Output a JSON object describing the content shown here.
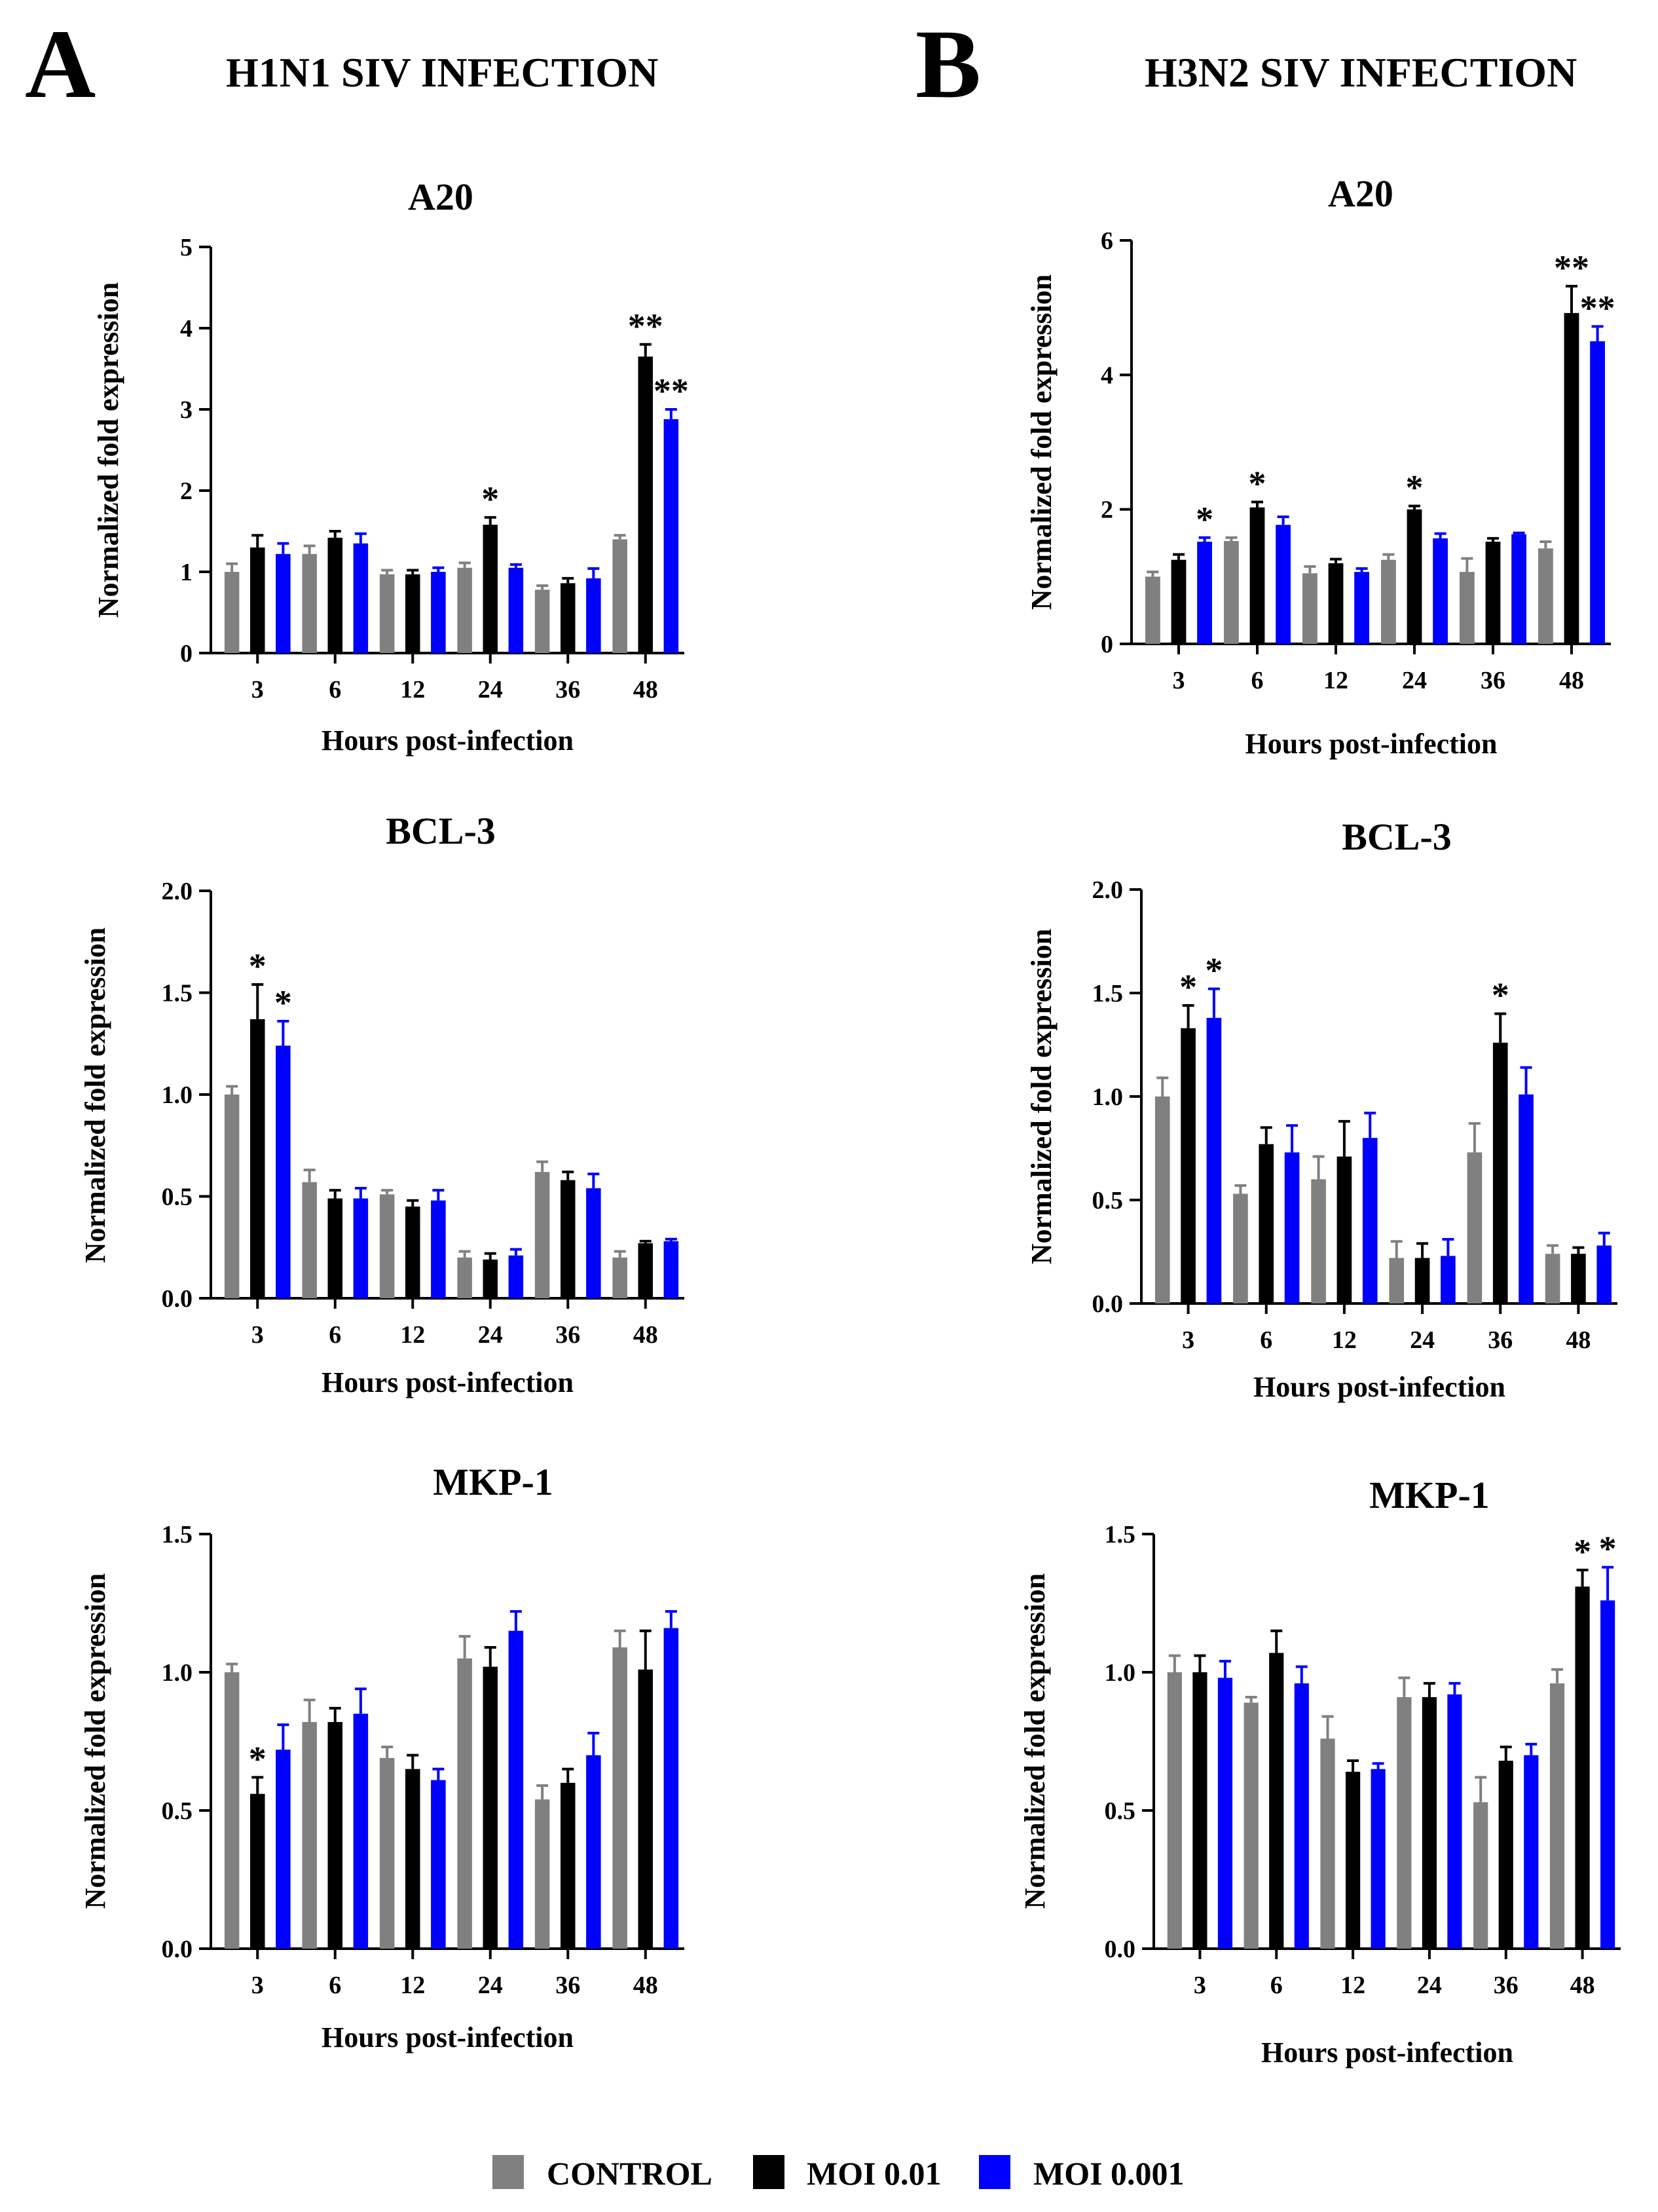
{
  "panels": [
    {
      "letter": "A",
      "title": "H1N1 SIV INFECTION"
    },
    {
      "letter": "B",
      "title": "H3N2 SIV INFECTION"
    }
  ],
  "legend": [
    {
      "label": "CONTROL",
      "color": "#808080"
    },
    {
      "label": "MOI 0.01",
      "color": "#000000"
    },
    {
      "label": "MOI 0.001",
      "color": "#0000ff"
    }
  ],
  "chart_data": [
    {
      "panel": "A",
      "type": "bar",
      "title": "A20",
      "xlabel": "Hours post-infection",
      "ylabel": "Normalized fold expression",
      "categories": [
        "3",
        "6",
        "12",
        "24",
        "36",
        "48"
      ],
      "ylim": [
        0,
        5
      ],
      "yticks": [
        "0",
        "1",
        "2",
        "3",
        "4",
        "5"
      ],
      "series": [
        {
          "name": "CONTROL",
          "values": [
            1.0,
            1.22,
            0.97,
            1.05,
            0.78,
            1.4
          ],
          "errors": [
            0.1,
            0.1,
            0.05,
            0.06,
            0.05,
            0.05
          ]
        },
        {
          "name": "MOI 0.01",
          "values": [
            1.3,
            1.42,
            0.97,
            1.58,
            0.86,
            3.65
          ],
          "errors": [
            0.15,
            0.08,
            0.05,
            0.09,
            0.06,
            0.15
          ]
        },
        {
          "name": "MOI 0.001",
          "values": [
            1.22,
            1.35,
            1.0,
            1.05,
            0.92,
            2.88
          ],
          "errors": [
            0.13,
            0.12,
            0.05,
            0.04,
            0.12,
            0.12
          ]
        }
      ],
      "annotations": [
        {
          "category": "24",
          "series": "MOI 0.01",
          "text": "*"
        },
        {
          "category": "48",
          "series": "MOI 0.01",
          "text": "**"
        },
        {
          "category": "48",
          "series": "MOI 0.001",
          "text": "**"
        }
      ]
    },
    {
      "panel": "A",
      "type": "bar",
      "title": "BCL-3",
      "xlabel": "Hours post-infection",
      "ylabel": "Normalized fold expression",
      "categories": [
        "3",
        "6",
        "12",
        "24",
        "36",
        "48"
      ],
      "ylim": [
        0,
        2
      ],
      "yticks": [
        "0.0",
        "0.5",
        "1.0",
        "1.5",
        "2.0"
      ],
      "series": [
        {
          "name": "CONTROL",
          "values": [
            1.0,
            0.57,
            0.51,
            0.2,
            0.62,
            0.2
          ],
          "errors": [
            0.04,
            0.06,
            0.02,
            0.03,
            0.05,
            0.03
          ]
        },
        {
          "name": "MOI 0.01",
          "values": [
            1.37,
            0.49,
            0.45,
            0.19,
            0.58,
            0.27
          ],
          "errors": [
            0.17,
            0.04,
            0.03,
            0.03,
            0.04,
            0.01
          ]
        },
        {
          "name": "MOI 0.001",
          "values": [
            1.24,
            0.49,
            0.48,
            0.21,
            0.54,
            0.28
          ],
          "errors": [
            0.12,
            0.05,
            0.05,
            0.03,
            0.07,
            0.01
          ]
        }
      ],
      "annotations": [
        {
          "category": "3",
          "series": "MOI 0.01",
          "text": "*"
        },
        {
          "category": "3",
          "series": "MOI 0.001",
          "text": "*"
        }
      ]
    },
    {
      "panel": "A",
      "type": "bar",
      "title": "MKP-1",
      "xlabel": "Hours post-infection",
      "ylabel": "Normalized fold expression",
      "categories": [
        "3",
        "6",
        "12",
        "24",
        "36",
        "48"
      ],
      "ylim": [
        0,
        1.5
      ],
      "yticks": [
        "0.0",
        "0.5",
        "1.0",
        "1.5"
      ],
      "series": [
        {
          "name": "CONTROL",
          "values": [
            1.0,
            0.82,
            0.69,
            1.05,
            0.54,
            1.09
          ],
          "errors": [
            0.03,
            0.08,
            0.04,
            0.08,
            0.05,
            0.06
          ]
        },
        {
          "name": "MOI 0.01",
          "values": [
            0.56,
            0.82,
            0.65,
            1.02,
            0.6,
            1.01
          ],
          "errors": [
            0.06,
            0.05,
            0.05,
            0.07,
            0.05,
            0.14
          ]
        },
        {
          "name": "MOI 0.001",
          "values": [
            0.72,
            0.85,
            0.61,
            1.15,
            0.7,
            1.16
          ],
          "errors": [
            0.09,
            0.09,
            0.04,
            0.07,
            0.08,
            0.06
          ]
        }
      ],
      "annotations": [
        {
          "category": "3",
          "series": "MOI 0.01",
          "text": "*"
        }
      ]
    },
    {
      "panel": "B",
      "type": "bar",
      "title": "A20",
      "xlabel": "Hours post-infection",
      "ylabel": "Normalized fold expression",
      "categories": [
        "3",
        "6",
        "12",
        "24",
        "36",
        "48"
      ],
      "ylim": [
        0,
        6
      ],
      "yticks": [
        "0",
        "2",
        "4",
        "6"
      ],
      "series": [
        {
          "name": "CONTROL",
          "values": [
            1.0,
            1.53,
            1.05,
            1.25,
            1.07,
            1.42
          ],
          "errors": [
            0.07,
            0.05,
            0.1,
            0.08,
            0.2,
            0.1
          ]
        },
        {
          "name": "MOI 0.01",
          "values": [
            1.25,
            2.03,
            1.2,
            2.0,
            1.52,
            4.92
          ],
          "errors": [
            0.08,
            0.08,
            0.06,
            0.05,
            0.05,
            0.4
          ]
        },
        {
          "name": "MOI 0.001",
          "values": [
            1.52,
            1.77,
            1.07,
            1.57,
            1.63,
            4.5
          ],
          "errors": [
            0.06,
            0.12,
            0.05,
            0.07,
            0.02,
            0.22
          ]
        }
      ],
      "annotations": [
        {
          "category": "3",
          "series": "MOI 0.001",
          "text": "*"
        },
        {
          "category": "6",
          "series": "MOI 0.01",
          "text": "*"
        },
        {
          "category": "24",
          "series": "MOI 0.01",
          "text": "*"
        },
        {
          "category": "48",
          "series": "MOI 0.01",
          "text": "**"
        },
        {
          "category": "48",
          "series": "MOI 0.001",
          "text": "**"
        }
      ]
    },
    {
      "panel": "B",
      "type": "bar",
      "title": "BCL-3",
      "xlabel": "Hours post-infection",
      "ylabel": "Normalized fold expression",
      "categories": [
        "3",
        "6",
        "12",
        "24",
        "36",
        "48"
      ],
      "ylim": [
        0,
        2
      ],
      "yticks": [
        "0.0",
        "0.5",
        "1.0",
        "1.5",
        "2.0"
      ],
      "series": [
        {
          "name": "CONTROL",
          "values": [
            1.0,
            0.53,
            0.6,
            0.22,
            0.73,
            0.24
          ],
          "errors": [
            0.09,
            0.04,
            0.11,
            0.08,
            0.14,
            0.04
          ]
        },
        {
          "name": "MOI 0.01",
          "values": [
            1.33,
            0.77,
            0.71,
            0.22,
            1.26,
            0.24
          ],
          "errors": [
            0.11,
            0.08,
            0.17,
            0.07,
            0.14,
            0.03
          ]
        },
        {
          "name": "MOI 0.001",
          "values": [
            1.38,
            0.73,
            0.8,
            0.23,
            1.01,
            0.28
          ],
          "errors": [
            0.14,
            0.13,
            0.12,
            0.08,
            0.13,
            0.06
          ]
        }
      ],
      "annotations": [
        {
          "category": "3",
          "series": "MOI 0.01",
          "text": "*"
        },
        {
          "category": "3",
          "series": "MOI 0.001",
          "text": "*"
        },
        {
          "category": "36",
          "series": "MOI 0.01",
          "text": "*"
        }
      ]
    },
    {
      "panel": "B",
      "type": "bar",
      "title": "MKP-1",
      "xlabel": "Hours post-infection",
      "ylabel": "Normalized fold expression",
      "categories": [
        "3",
        "6",
        "12",
        "24",
        "36",
        "48"
      ],
      "ylim": [
        0,
        1.5
      ],
      "yticks": [
        "0.0",
        "0.5",
        "1.0",
        "1.5"
      ],
      "series": [
        {
          "name": "CONTROL",
          "values": [
            1.0,
            0.89,
            0.76,
            0.91,
            0.53,
            0.96
          ],
          "errors": [
            0.06,
            0.02,
            0.08,
            0.07,
            0.09,
            0.05
          ]
        },
        {
          "name": "MOI 0.01",
          "values": [
            1.0,
            1.07,
            0.64,
            0.91,
            0.68,
            1.31
          ],
          "errors": [
            0.06,
            0.08,
            0.04,
            0.05,
            0.05,
            0.06
          ]
        },
        {
          "name": "MOI 0.001",
          "values": [
            0.98,
            0.96,
            0.65,
            0.92,
            0.7,
            1.26
          ],
          "errors": [
            0.06,
            0.06,
            0.02,
            0.04,
            0.04,
            0.12
          ]
        }
      ],
      "annotations": [
        {
          "category": "48",
          "series": "MOI 0.01",
          "text": "*"
        },
        {
          "category": "48",
          "series": "MOI 0.001",
          "text": "*"
        }
      ]
    }
  ]
}
